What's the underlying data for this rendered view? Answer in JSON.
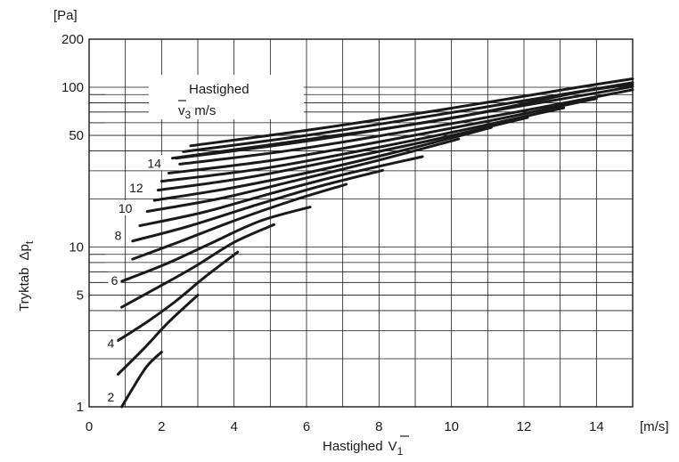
{
  "chart_data": {
    "type": "line",
    "x_unit": "[m/s]",
    "y_unit": "[Pa]",
    "xlabel": "Hastighed",
    "xlabel_symbol": "V",
    "xlabel_sub": "1",
    "ylabel": "Tryktab",
    "ylabel_symbol": "Δp",
    "ylabel_sub": "t",
    "legend_title": "Hastighed",
    "legend_symbol": "v",
    "legend_sub": "3",
    "legend_unit": "m/s",
    "y_scale": "log",
    "xlim": [
      0,
      15
    ],
    "ylim": [
      1,
      200
    ],
    "x_ticks": [
      "0",
      "2",
      "4",
      "6",
      "8",
      "10",
      "12",
      "14"
    ],
    "y_ticks": [
      {
        "value": 1,
        "label": "1"
      },
      {
        "value": 5,
        "label": "5"
      },
      {
        "value": 10,
        "label": "10"
      },
      {
        "value": 50,
        "label": "50"
      },
      {
        "value": 100,
        "label": "100"
      },
      {
        "value": 200,
        "label": "200"
      }
    ],
    "grid": true,
    "curve_labels": [
      {
        "text": "2",
        "x": 0.6,
        "y": 1.15
      },
      {
        "text": "4",
        "x": 0.6,
        "y": 2.5
      },
      {
        "text": "6",
        "x": 0.7,
        "y": 6.2
      },
      {
        "text": "8",
        "x": 0.8,
        "y": 11.8
      },
      {
        "text": "10",
        "x": 1.0,
        "y": 17.5
      },
      {
        "text": "12",
        "x": 1.3,
        "y": 23.5
      },
      {
        "text": "14",
        "x": 1.8,
        "y": 33.5
      }
    ],
    "series": [
      {
        "x": [
          0.9,
          1.2,
          1.6,
          2.0
        ],
        "y": [
          1.0,
          1.3,
          1.8,
          2.2
        ]
      },
      {
        "x": [
          0.8,
          1.5,
          2.2,
          3.0
        ],
        "y": [
          1.6,
          2.3,
          3.4,
          5.0
        ]
      },
      {
        "x": [
          0.8,
          1.6,
          2.4,
          3.2,
          4.1
        ],
        "y": [
          2.6,
          3.4,
          4.6,
          6.5,
          9.3
        ]
      },
      {
        "x": [
          0.9,
          1.9,
          2.9,
          4.0,
          5.1
        ],
        "y": [
          4.2,
          5.6,
          7.5,
          10.7,
          13.8
        ]
      },
      {
        "x": [
          0.9,
          2.1,
          3.3,
          4.7,
          6.1
        ],
        "y": [
          6.1,
          7.8,
          10.4,
          14.5,
          17.8
        ]
      },
      {
        "x": [
          1.2,
          2.5,
          4.0,
          5.6,
          7.1
        ],
        "y": [
          8.4,
          10.8,
          14.6,
          19.5,
          24.7
        ]
      },
      {
        "x": [
          1.2,
          2.8,
          4.5,
          6.3,
          8.1
        ],
        "y": [
          10.9,
          13.6,
          18.0,
          23.8,
          30.2
        ]
      },
      {
        "x": [
          1.4,
          3.2,
          5.1,
          7.1,
          9.2
        ],
        "y": [
          13.6,
          16.6,
          21.9,
          28.7,
          36.8
        ]
      },
      {
        "x": [
          1.6,
          3.6,
          5.8,
          8.0,
          10.2
        ],
        "y": [
          16.7,
          20.1,
          26.4,
          35.0,
          47.5
        ]
      },
      {
        "x": [
          1.8,
          4.0,
          6.4,
          8.8,
          11.1
        ],
        "y": [
          19.6,
          23.6,
          30.5,
          41.0,
          56.0
        ]
      },
      {
        "x": [
          1.9,
          4.4,
          7.0,
          9.6,
          12.1
        ],
        "y": [
          22.7,
          27.3,
          35.6,
          47.5,
          64.7
        ]
      },
      {
        "x": [
          2.0,
          4.8,
          7.6,
          10.4,
          13.1
        ],
        "y": [
          25.8,
          31.0,
          40.5,
          54.5,
          74.4
        ]
      },
      {
        "x": [
          2.2,
          5.1,
          8.1,
          11.1,
          14.0
        ],
        "y": [
          29.0,
          35.0,
          46.0,
          62.0,
          85.0
        ]
      },
      {
        "x": [
          2.5,
          5.4,
          8.5,
          11.8,
          15.0
        ],
        "y": [
          33.0,
          39.8,
          51.8,
          70.0,
          96.5
        ]
      },
      {
        "x": [
          2.4,
          5.7,
          9.0,
          12.3,
          15.0
        ],
        "y": [
          36.0,
          45.0,
          59.0,
          79.0,
          101.0
        ]
      },
      {
        "x": [
          2.6,
          6.0,
          9.5,
          12.9,
          15.0
        ],
        "y": [
          39.5,
          50.0,
          66.5,
          89.0,
          107.0
        ]
      },
      {
        "x": [
          2.8,
          6.3,
          10.0,
          13.5,
          15.0
        ],
        "y": [
          43.0,
          55.0,
          74.0,
          100.0,
          113.0
        ]
      },
      {
        "x": [
          2.3,
          6.0,
          10.0,
          13.5,
          15.0
        ],
        "y": [
          36.0,
          47.0,
          64.0,
          93.0,
          104.0
        ]
      }
    ]
  }
}
